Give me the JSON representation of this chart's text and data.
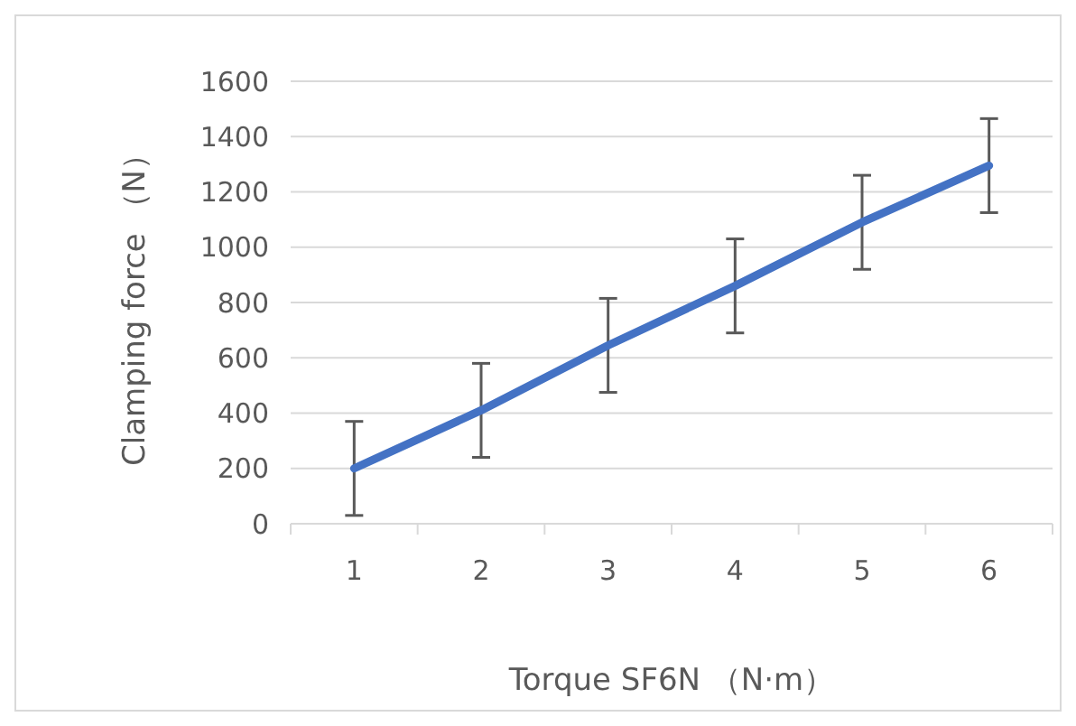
{
  "chart_data": {
    "type": "line",
    "xlabel": "Torque SF6N （N·m）",
    "ylabel": "Clamping force （N）",
    "categories": [
      "1",
      "2",
      "3",
      "4",
      "5",
      "6"
    ],
    "series": [
      {
        "color": "#4472c4",
        "values": [
          200,
          410,
          645,
          860,
          1090,
          1295
        ],
        "errors": [
          170,
          170,
          170,
          170,
          170,
          170
        ]
      }
    ],
    "ylim": [
      0,
      1600
    ],
    "yticks": [
      0,
      200,
      400,
      600,
      800,
      1000,
      1200,
      1400,
      1600
    ],
    "grid": "y",
    "marker": "none",
    "line_style": "solid"
  }
}
